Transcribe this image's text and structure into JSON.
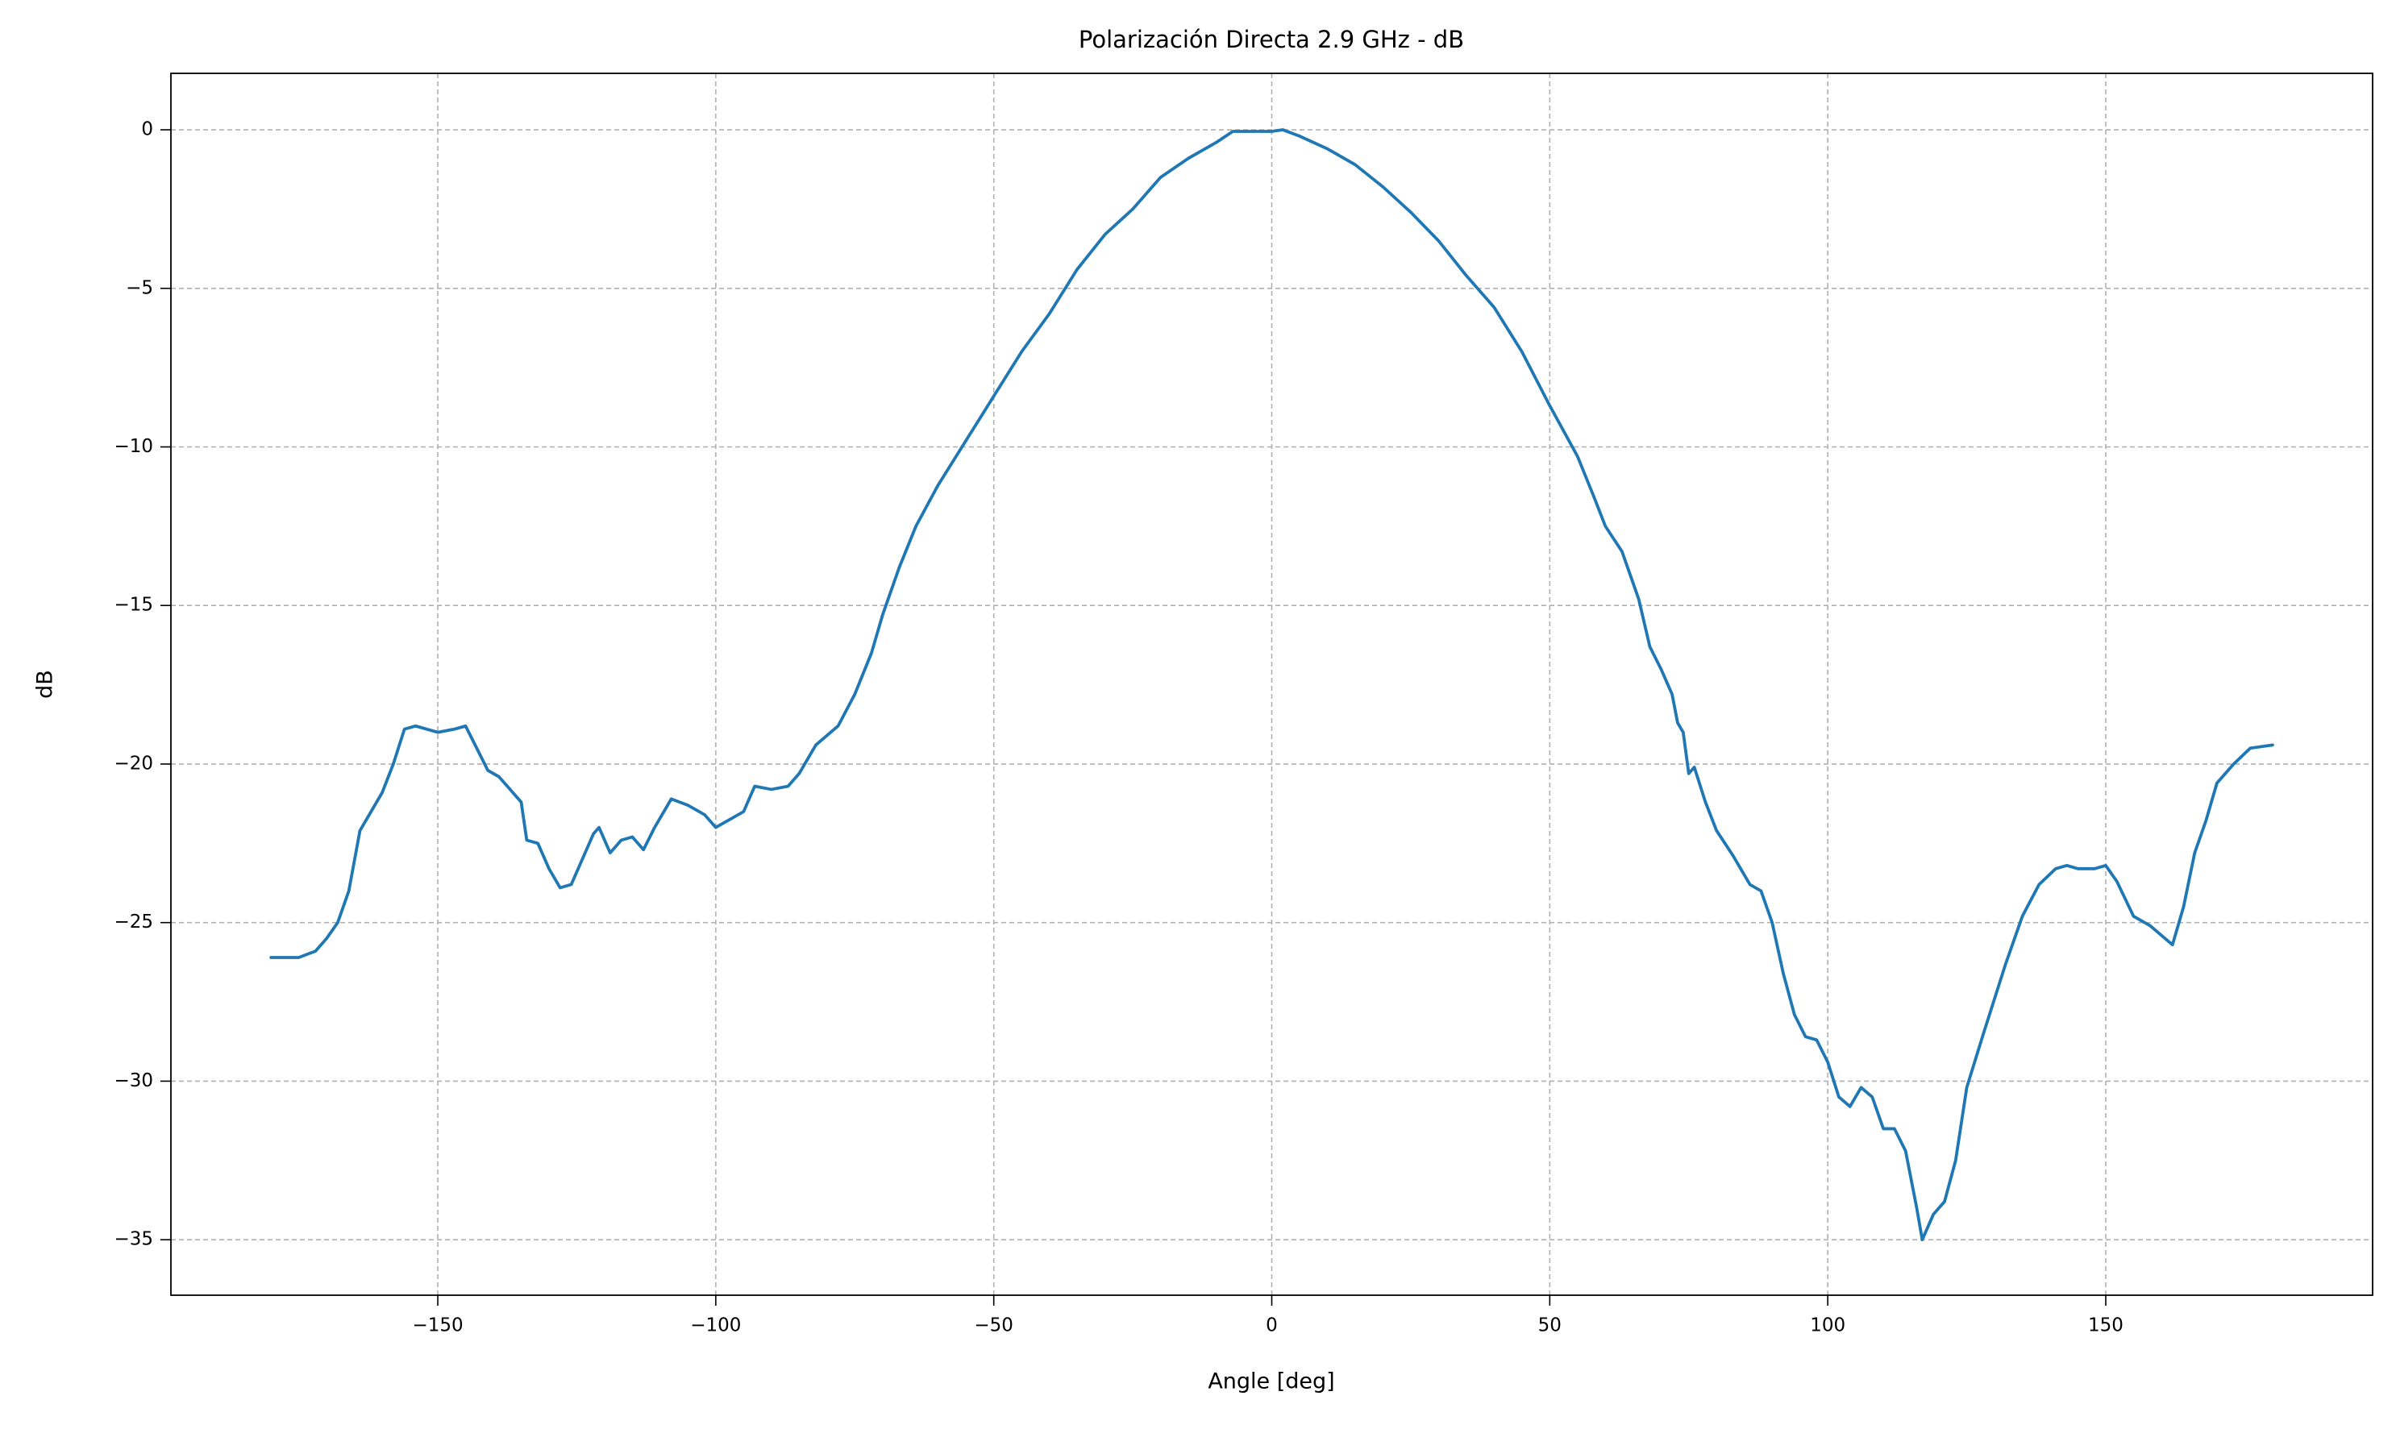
{
  "chart_data": {
    "type": "line",
    "title": "Polarización Directa 2.9 GHz - dB",
    "x_label": "Angle [deg]",
    "y_label": "dB",
    "color": "#1f77b4",
    "grid": true,
    "x": [
      -180,
      -175,
      -172,
      -170,
      -168,
      -166,
      -164,
      -160,
      -158,
      -156,
      -154,
      -150,
      -147,
      -145,
      -143,
      -141,
      -139,
      -137,
      -135,
      -134,
      -132,
      -130,
      -128,
      -126,
      -124,
      -122,
      -121,
      -119,
      -117,
      -115,
      -113,
      -111,
      -108,
      -105,
      -102,
      -100,
      -97,
      -95,
      -93,
      -90,
      -87,
      -85,
      -82,
      -78,
      -75,
      -72,
      -70,
      -67,
      -64,
      -60,
      -55,
      -50,
      -45,
      -40,
      -35,
      -30,
      -25,
      -20,
      -15,
      -10,
      -7,
      -5,
      0,
      2,
      5,
      10,
      15,
      20,
      25,
      30,
      35,
      40,
      45,
      50,
      55,
      58,
      60,
      63,
      66,
      68,
      70,
      72,
      73,
      74,
      75,
      76,
      78,
      80,
      83,
      86,
      88,
      90,
      92,
      94,
      96,
      98,
      100,
      102,
      104,
      106,
      108,
      110,
      112,
      114,
      116,
      117,
      119,
      121,
      123,
      125,
      128,
      132,
      135,
      138,
      141,
      143,
      145,
      148,
      150,
      152,
      155,
      158,
      160,
      162,
      164,
      166,
      168,
      170,
      173,
      176,
      180
    ],
    "values": [
      -26.1,
      -26.1,
      -25.9,
      -25.5,
      -25.0,
      -24.0,
      -22.1,
      -20.9,
      -20.0,
      -18.9,
      -18.8,
      -19.0,
      -18.9,
      -18.8,
      -19.5,
      -20.2,
      -20.4,
      -20.8,
      -21.2,
      -22.4,
      -22.5,
      -23.3,
      -23.9,
      -23.8,
      -23.0,
      -22.2,
      -22.0,
      -22.8,
      -22.4,
      -22.3,
      -22.7,
      -22.0,
      -21.1,
      -21.3,
      -21.6,
      -22.0,
      -21.7,
      -21.5,
      -20.7,
      -20.8,
      -20.7,
      -20.3,
      -19.4,
      -18.8,
      -17.8,
      -16.5,
      -15.3,
      -13.8,
      -12.5,
      -11.2,
      -9.8,
      -8.4,
      -7.0,
      -5.8,
      -4.4,
      -3.3,
      -2.5,
      -1.5,
      -0.9,
      -0.4,
      -0.05,
      -0.05,
      -0.05,
      0,
      -0.2,
      -0.6,
      -1.1,
      -1.8,
      -2.6,
      -3.5,
      -4.6,
      -5.6,
      -7.0,
      -8.7,
      -10.3,
      -11.6,
      -12.5,
      -13.3,
      -14.8,
      -16.3,
      -17.0,
      -17.8,
      -18.7,
      -19.0,
      -20.3,
      -20.1,
      -21.2,
      -22.1,
      -22.9,
      -23.8,
      -24.0,
      -25.0,
      -26.6,
      -27.9,
      -28.6,
      -28.7,
      -29.4,
      -30.5,
      -30.8,
      -30.2,
      -30.5,
      -31.5,
      -31.5,
      -32.2,
      -34.0,
      -35.0,
      -34.2,
      -33.8,
      -32.5,
      -30.2,
      -28.5,
      -26.3,
      -24.8,
      -23.8,
      -23.3,
      -23.2,
      -23.3,
      -23.3,
      -23.2,
      -23.7,
      -24.8,
      -25.1,
      -25.4,
      -25.7,
      -24.5,
      -22.8,
      -21.8,
      -20.6,
      -20.0,
      -19.5,
      -19.4
    ],
    "xlim": [
      -198,
      198
    ],
    "ylim": [
      -36.75,
      1.78
    ],
    "xticks": [
      {
        "value": -150,
        "label": "−150"
      },
      {
        "value": -100,
        "label": "−100"
      },
      {
        "value": -50,
        "label": "−50"
      },
      0,
      50,
      100,
      150
    ],
    "yticks": [
      0,
      {
        "value": -5,
        "label": "−5"
      },
      {
        "value": -10,
        "label": "−10"
      },
      {
        "value": -15,
        "label": "−15"
      },
      {
        "value": -20,
        "label": "−20"
      },
      {
        "value": -25,
        "label": "−25"
      },
      {
        "value": -30,
        "label": "−30"
      },
      {
        "value": -35,
        "label": "−35"
      }
    ]
  }
}
